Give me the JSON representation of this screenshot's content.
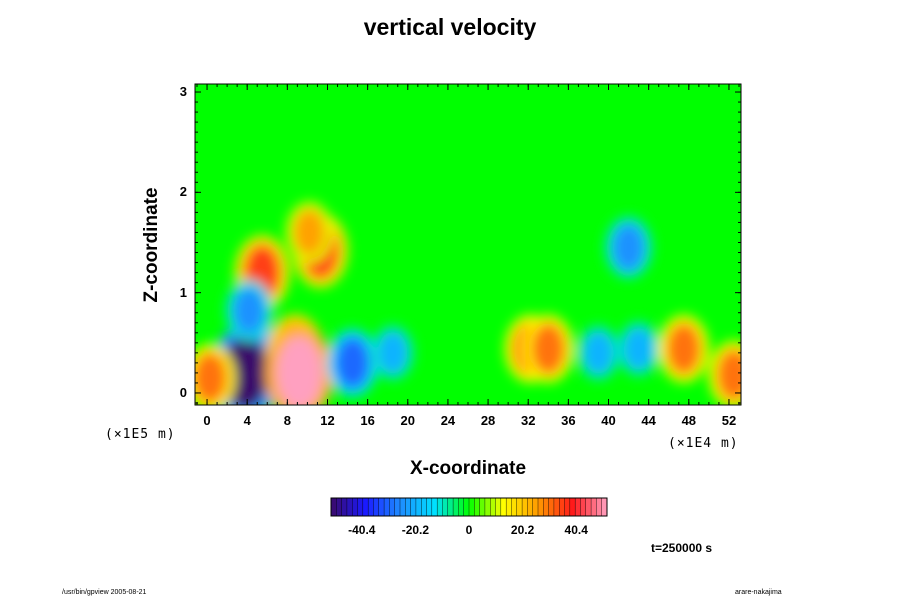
{
  "chart_data": {
    "type": "heatmap",
    "title": "vertical velocity",
    "xlabel": "X-coordinate",
    "ylabel": "Z-coordinate",
    "x_unit": "(×1E4 m)",
    "y_unit": "(×1E5 m)",
    "x_ticks": [
      "0",
      "4",
      "8",
      "12",
      "16",
      "20",
      "24",
      "28",
      "32",
      "36",
      "40",
      "44",
      "48",
      "52"
    ],
    "y_ticks": [
      "0",
      "1",
      "2",
      "3"
    ],
    "xlim": [
      -1.2,
      53.2
    ],
    "ylim": [
      -0.12,
      3.08
    ],
    "colorbar": {
      "ticks": [
        "-40.4",
        "-20.2",
        "0",
        "20.2",
        "40.4"
      ],
      "range": [
        -52,
        52
      ],
      "colors": [
        "#3a0a6a",
        "#1a1aff",
        "#1e8cff",
        "#00e0ff",
        "#00ff00",
        "#ffff00",
        "#ff9a00",
        "#ff1a1a",
        "#ffa0c0"
      ]
    },
    "background_value": 0,
    "features": [
      {
        "x": 4.5,
        "z": 0.34,
        "value": -40
      },
      {
        "x": 3.8,
        "z": 0.2,
        "value": -52
      },
      {
        "x": 8.8,
        "z": 0.38,
        "value": 40
      },
      {
        "x": 9.2,
        "z": 0.2,
        "value": 52
      },
      {
        "x": 14.5,
        "z": 0.3,
        "value": -30
      },
      {
        "x": 18.5,
        "z": 0.4,
        "value": -20
      },
      {
        "x": 32.2,
        "z": 0.44,
        "value": 30
      },
      {
        "x": 34,
        "z": 0.44,
        "value": 30
      },
      {
        "x": 39,
        "z": 0.4,
        "value": -20
      },
      {
        "x": 43,
        "z": 0.44,
        "value": -20
      },
      {
        "x": 47.5,
        "z": 0.44,
        "value": 30
      },
      {
        "x": 0.3,
        "z": 0.15,
        "value": 30
      },
      {
        "x": 52.5,
        "z": 0.18,
        "value": 30
      },
      {
        "x": 5.5,
        "z": 1.2,
        "value": 35
      },
      {
        "x": 11.3,
        "z": 1.42,
        "value": 35
      },
      {
        "x": 10.2,
        "z": 1.6,
        "value": 25
      },
      {
        "x": 42,
        "z": 1.45,
        "value": -25
      },
      {
        "x": 4.2,
        "z": 0.82,
        "value": -25
      }
    ],
    "timestamp": "t=250000 s"
  },
  "footer": {
    "left": "/usr/bin/gpview 2005-08-21",
    "right": "arare-nakajima"
  }
}
